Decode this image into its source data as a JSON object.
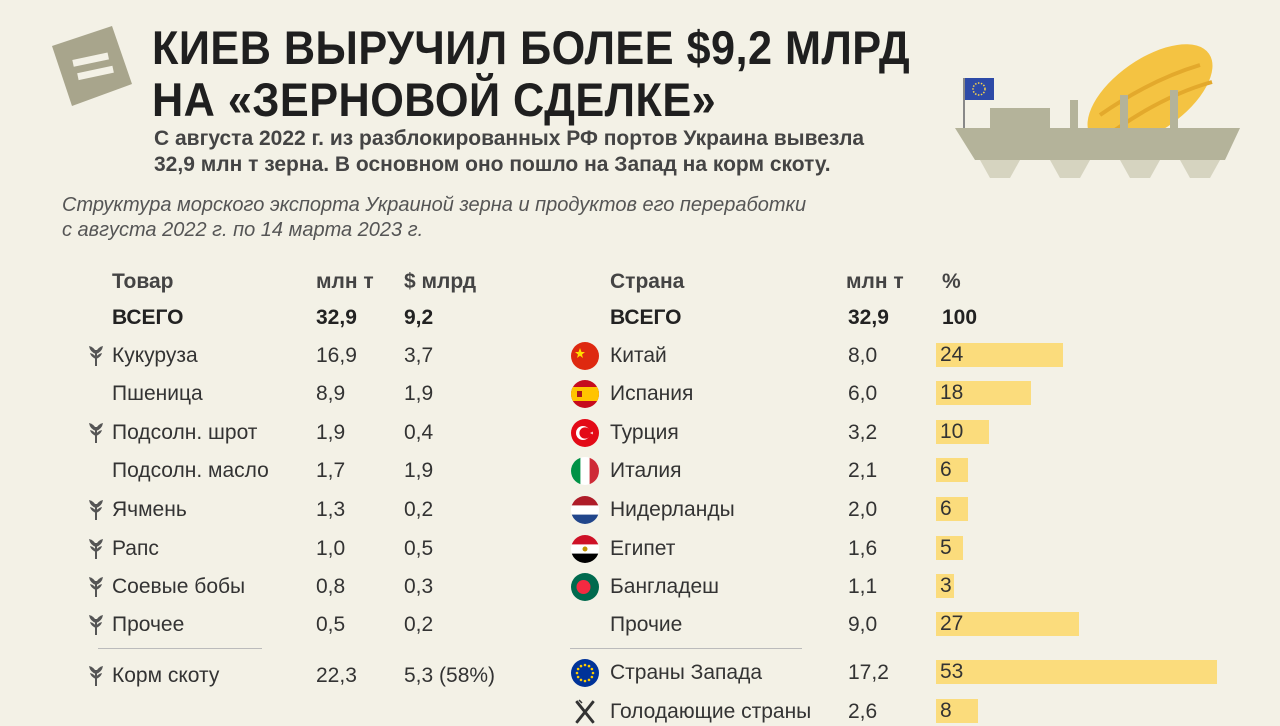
{
  "header": {
    "title_line1": "КИЕВ ВЫРУЧИЛ БОЛЕЕ $9,2 МЛРД",
    "title_line2": "НА «ЗЕРНОВОЙ СДЕЛКЕ»",
    "subtitle_line1": "С августа 2022 г. из разблокированных РФ портов Украина вывезла",
    "subtitle_line2": "32,9 млн т зерна. В основном оно пошло на Запад на корм скоту.",
    "caption_line1": "Структура морского экспорта Украиной зерна и продуктов его переработки",
    "caption_line2": "с августа 2022 г. по 14 марта 2023 г."
  },
  "colors": {
    "background": "#f3f1e6",
    "bar": "#fbdc7c",
    "logo": "#a8a58c",
    "ship": "#b4b39a",
    "bread": "#f4c342"
  },
  "goods": {
    "headers": {
      "name": "Товар",
      "tons": "млн т",
      "usd": "$ млрд"
    },
    "total": {
      "name": "ВСЕГО",
      "tons": "32,9",
      "usd": "9,2"
    },
    "rows": [
      {
        "name": "Кукуруза",
        "tons": "16,9",
        "usd": "3,7",
        "icon": "wheat-icon"
      },
      {
        "name": "Пшеница",
        "tons": "8,9",
        "usd": "1,9",
        "icon": ""
      },
      {
        "name": "Подсолн. шрот",
        "tons": "1,9",
        "usd": "0,4",
        "icon": "wheat-icon"
      },
      {
        "name": "Подсолн. масло",
        "tons": "1,7",
        "usd": "1,9",
        "icon": ""
      },
      {
        "name": "Ячмень",
        "tons": "1,3",
        "usd": "0,2",
        "icon": "wheat-icon"
      },
      {
        "name": "Рапс",
        "tons": "1,0",
        "usd": "0,5",
        "icon": "wheat-icon"
      },
      {
        "name": "Соевые бобы",
        "tons": "0,8",
        "usd": "0,3",
        "icon": "wheat-icon"
      },
      {
        "name": "Прочее",
        "tons": "0,5",
        "usd": "0,2",
        "icon": "wheat-icon"
      }
    ],
    "feed": {
      "name": "Корм скоту",
      "tons": "22,3",
      "usd": "5,3 (58%)",
      "icon": "wheat-icon"
    }
  },
  "countries": {
    "headers": {
      "name": "Страна",
      "tons": "млн т",
      "pct": "%"
    },
    "total": {
      "name": "ВСЕГО",
      "tons": "32,9",
      "pct": "100"
    },
    "rows": [
      {
        "name": "Китай",
        "tons": "8,0",
        "pct": "24",
        "share": 24,
        "flag": "china"
      },
      {
        "name": "Испания",
        "tons": "6,0",
        "pct": "18",
        "share": 18,
        "flag": "spain"
      },
      {
        "name": "Турция",
        "tons": "3,2",
        "pct": "10",
        "share": 10,
        "flag": "turkey"
      },
      {
        "name": "Италия",
        "tons": "2,1",
        "pct": "6",
        "share": 6,
        "flag": "italy"
      },
      {
        "name": "Нидерланды",
        "tons": "2,0",
        "pct": "6",
        "share": 6,
        "flag": "netherlands"
      },
      {
        "name": "Египет",
        "tons": "1,6",
        "pct": "5",
        "share": 5,
        "flag": "egypt"
      },
      {
        "name": "Бангладеш",
        "tons": "1,1",
        "pct": "3",
        "share": 3,
        "flag": "bangladesh"
      },
      {
        "name": "Прочие",
        "tons": "9,0",
        "pct": "27",
        "share": 27,
        "flag": ""
      }
    ],
    "west": {
      "name": "Страны Запада",
      "tons": "17,2",
      "pct": "53",
      "share": 53,
      "flag": "eu"
    },
    "hungry": {
      "name": "Голодающие страны",
      "tons": "2,6",
      "pct": "8",
      "share": 8,
      "flag": "fork-knife"
    }
  }
}
